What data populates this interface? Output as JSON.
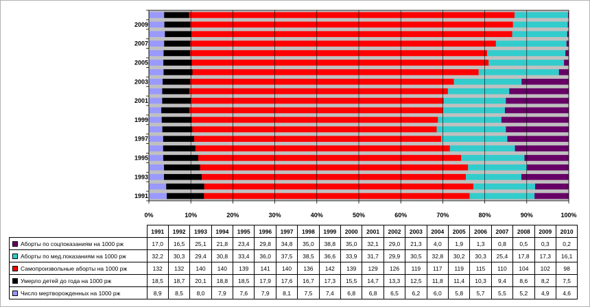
{
  "chart_data": {
    "type": "bar",
    "orientation": "horizontal",
    "stacking": "percent",
    "categories": [
      "1991",
      "1992",
      "1993",
      "1994",
      "1995",
      "1996",
      "1997",
      "1998",
      "1999",
      "2000",
      "2001",
      "2002",
      "2003",
      "2004",
      "2005",
      "2006",
      "2007",
      "2008",
      "2009",
      "2010"
    ],
    "y_tick_labels": [
      "1991",
      "1993",
      "1995",
      "1997",
      "1999",
      "2001",
      "2003",
      "2005",
      "2007",
      "2009"
    ],
    "x_ticks": [
      "0%",
      "10%",
      "20%",
      "30%",
      "40%",
      "50%",
      "60%",
      "70%",
      "80%",
      "90%",
      "100%"
    ],
    "xlim": [
      0,
      100
    ],
    "grid": true,
    "legend": "table-bottom",
    "series": [
      {
        "name": "Число мертворожденных на 1000 рж",
        "color": "#9999ff",
        "values": [
          "8,9",
          "8,5",
          "8,0",
          "7,9",
          "7,6",
          "7,9",
          "8,1",
          "7,5",
          "7,4",
          "6,8",
          "6,8",
          "6,5",
          "6,2",
          "6,0",
          "5,8",
          "5,7",
          "5,5",
          "5,2",
          "4,9",
          "4,6"
        ]
      },
      {
        "name": "Умерло детей до года на 1000 рж",
        "color": "#000000",
        "values": [
          "18,5",
          "18,7",
          "20,1",
          "18,8",
          "18,5",
          "17,9",
          "17,6",
          "16,7",
          "17,3",
          "15,5",
          "14,7",
          "13,3",
          "12,5",
          "11,8",
          "11,4",
          "10,3",
          "9,4",
          "8,6",
          "8,2",
          "7,5"
        ]
      },
      {
        "name": "Самопроизвольные аборты на 1000 рж",
        "color": "#ff0000",
        "values": [
          "132",
          "132",
          "140",
          "140",
          "139",
          "141",
          "140",
          "136",
          "142",
          "139",
          "129",
          "126",
          "119",
          "117",
          "119",
          "115",
          "110",
          "104",
          "102",
          "98"
        ]
      },
      {
        "name": "Аборты по мед.показаниям на 1000 рж",
        "color": "#33cccc",
        "values": [
          "32,2",
          "30,3",
          "29,4",
          "30,8",
          "33,4",
          "36,0",
          "37,5",
          "38,5",
          "36,6",
          "33,9",
          "31,7",
          "29,9",
          "30,5",
          "32,8",
          "30,2",
          "30,3",
          "25,4",
          "17,8",
          "17,3",
          "16,1"
        ]
      },
      {
        "name": "Аборты по соцпоказаниям на 1000 рж",
        "color": "#660066",
        "values": [
          "17,0",
          "16,5",
          "25,1",
          "21,8",
          "23,4",
          "29,8",
          "34,8",
          "35,0",
          "38,8",
          "35,0",
          "32,1",
          "29,0",
          "21,3",
          "4,0",
          "1,9",
          "1,3",
          "0,8",
          "0,5",
          "0,3",
          "0,2"
        ]
      }
    ]
  }
}
